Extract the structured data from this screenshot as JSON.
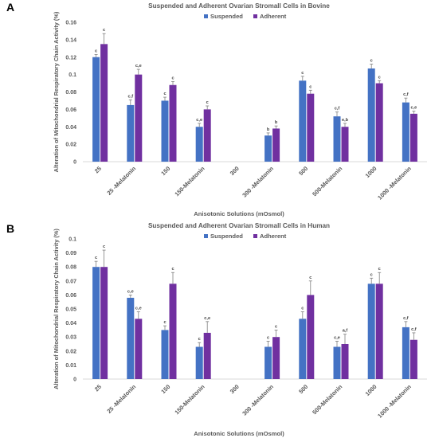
{
  "chart_data": [
    {
      "panel_label": "A",
      "type": "bar",
      "title": "Suspended and Adherent Ovarian Stromall Cells in Bovine",
      "xlabel": "Anisotonic Solutions (mOsmol)",
      "ylabel": "Alteration of Mitochondrial Respiratory Chain Activity (%)",
      "ylim": [
        0,
        0.16
      ],
      "yticks": [
        "0",
        "0.02",
        "0.04",
        "0.06",
        "0.08",
        "0.1",
        "0.12",
        "0.14",
        "0.16"
      ],
      "categories": [
        "25",
        "25 -Melatonin",
        "150",
        "150-Melatonin",
        "300",
        "300 -Melatonin",
        "500",
        "500-Melatonin",
        "1000",
        "1000 -Melatonin"
      ],
      "legend_position": "top-center",
      "series": [
        {
          "name": "Suspended",
          "color": "#4472C4",
          "values": [
            0.12,
            0.065,
            0.07,
            0.04,
            null,
            0.03,
            0.093,
            0.052,
            0.107,
            0.068
          ],
          "errors": [
            0.003,
            0.006,
            0.004,
            0.004,
            null,
            0.003,
            0.005,
            0.005,
            0.005,
            0.005
          ],
          "labels": [
            "c",
            "c,f",
            "c",
            "c,e",
            "",
            "b",
            "c",
            "c,f",
            "c",
            "c,f"
          ]
        },
        {
          "name": "Adherent",
          "color": "#7030A0",
          "values": [
            0.135,
            0.1,
            0.088,
            0.06,
            null,
            0.038,
            0.078,
            0.04,
            0.09,
            0.055
          ],
          "errors": [
            0.012,
            0.006,
            0.004,
            0.004,
            null,
            0.003,
            0.004,
            0.004,
            0.003,
            0.003
          ],
          "labels": [
            "c",
            "c,e",
            "c",
            "c",
            "",
            "b",
            "c",
            "e,b",
            "c",
            "c,e"
          ]
        }
      ]
    },
    {
      "panel_label": "B",
      "type": "bar",
      "title": "Suspended and Adherent Ovarian Stromall Cells in Human",
      "xlabel": "Anisotonic Solutions (mOsmol)",
      "ylabel": "Alteration of Mitochondrial Respiratory Chain Activity (%)",
      "ylim": [
        0,
        0.1
      ],
      "yticks": [
        "0",
        "0.01",
        "0.02",
        "0.03",
        "0.04",
        "0.05",
        "0.06",
        "0.07",
        "0.08",
        "0.09",
        "0.1"
      ],
      "categories": [
        "25",
        "25 -Melatonin",
        "150",
        "150-Melatonin",
        "300",
        "300 -Melatonin",
        "500",
        "500-Melatonin",
        "1000",
        "1000 -Melatonin"
      ],
      "legend_position": "top-center",
      "series": [
        {
          "name": "Suspended",
          "color": "#4472C4",
          "values": [
            0.08,
            0.058,
            0.035,
            0.023,
            null,
            0.023,
            0.043,
            0.023,
            0.068,
            0.037
          ],
          "errors": [
            0.004,
            0.002,
            0.003,
            0.003,
            null,
            0.004,
            0.005,
            0.004,
            0.004,
            0.004
          ],
          "labels": [
            "c",
            "c,e",
            "c",
            "c",
            "",
            "c",
            "c",
            "c,e",
            "c",
            "c,f"
          ]
        },
        {
          "name": "Adherent",
          "color": "#7030A0",
          "values": [
            0.08,
            0.043,
            0.068,
            0.033,
            null,
            0.03,
            0.06,
            0.025,
            0.068,
            0.028
          ],
          "errors": [
            0.012,
            0.005,
            0.008,
            0.008,
            null,
            0.005,
            0.01,
            0.007,
            0.008,
            0.005
          ],
          "labels": [
            "c",
            "c,e",
            "c",
            "c,e",
            "",
            "c",
            "c",
            "a,f",
            "c",
            "c,f"
          ]
        }
      ]
    }
  ]
}
